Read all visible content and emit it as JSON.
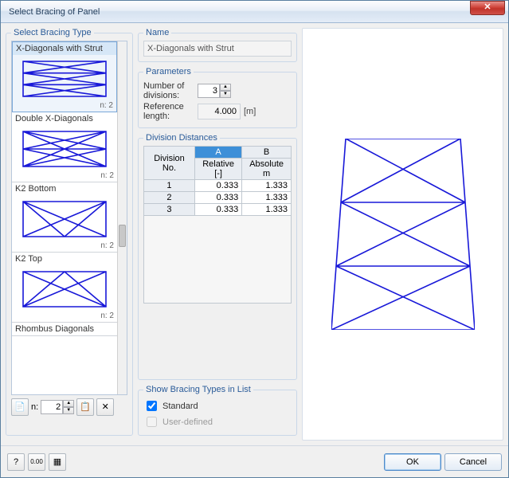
{
  "window": {
    "title": "Select Bracing of Panel",
    "close_glyph": "✕"
  },
  "left": {
    "legend": "Select Bracing Type",
    "items": [
      {
        "label": "X-Diagonals with Strut",
        "n_label": "n: 2",
        "selected": true
      },
      {
        "label": "Double X-Diagonals",
        "n_label": "n: 2",
        "selected": false
      },
      {
        "label": "K2 Bottom",
        "n_label": "n: 2",
        "selected": false
      },
      {
        "label": "K2 Top",
        "n_label": "n: 2",
        "selected": false
      },
      {
        "label": "Rhombus Diagonals",
        "n_label": "",
        "selected": false
      }
    ],
    "tools": {
      "new_icon": "📄",
      "n_prefix": "n:",
      "n_value": "2",
      "props_icon": "📋",
      "delete_icon": "✕"
    }
  },
  "name": {
    "legend": "Name",
    "value": "X-Diagonals with Strut"
  },
  "parameters": {
    "legend": "Parameters",
    "divisions_label": "Number of divisions:",
    "divisions_value": "3",
    "ref_label": "Reference length:",
    "ref_value": "4.000",
    "ref_unit": "[m]"
  },
  "division_distances": {
    "legend": "Division Distances",
    "col_div": "Division No.",
    "col_a": "A",
    "col_b": "B",
    "sub_a": "Relative [-]",
    "sub_b": "Absolute m",
    "rows": [
      {
        "no": "1",
        "rel": "0.333",
        "abs": "1.333"
      },
      {
        "no": "2",
        "rel": "0.333",
        "abs": "1.333"
      },
      {
        "no": "3",
        "rel": "0.333",
        "abs": "1.333"
      }
    ]
  },
  "show_types": {
    "legend": "Show Bracing Types in List",
    "standard": "Standard",
    "user_defined": "User-defined"
  },
  "footer": {
    "help_icon": "?",
    "units_icon": "0.00",
    "calc_icon": "▦",
    "ok": "OK",
    "cancel": "Cancel"
  },
  "style": {
    "bracing_stroke": "#1818d8",
    "bracing_stroke_width": 1.6,
    "preview_stroke": "#1818d8",
    "preview_stroke_width": 1.6
  }
}
